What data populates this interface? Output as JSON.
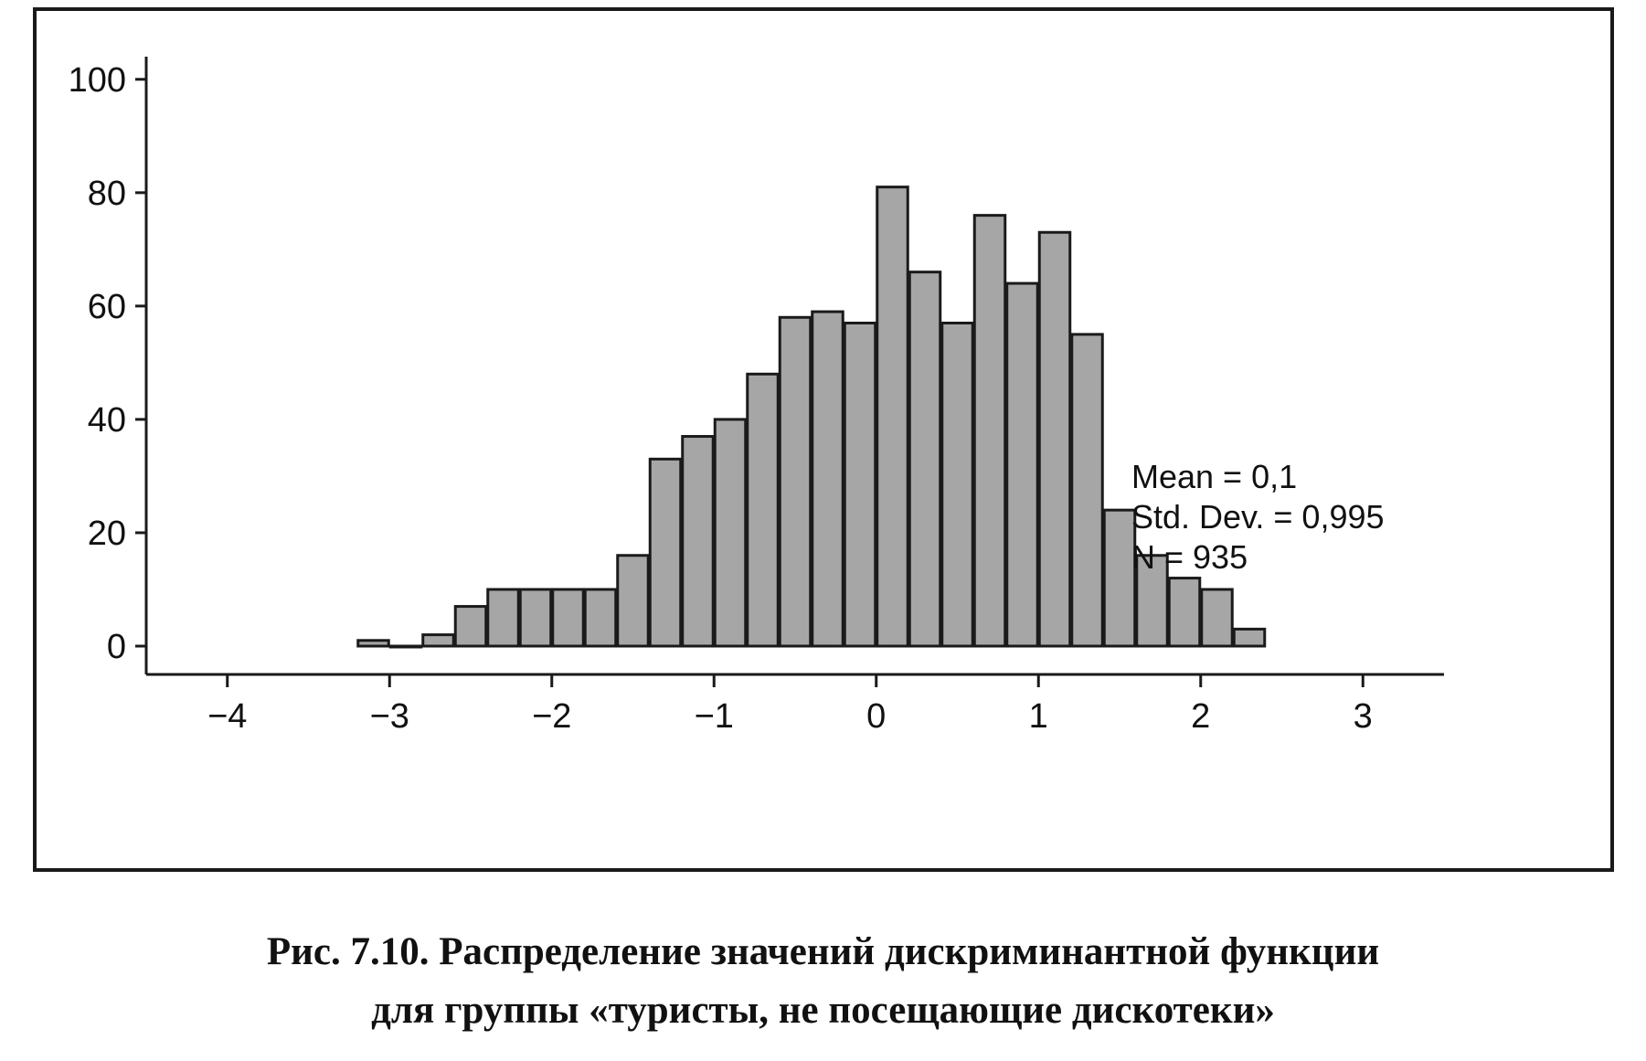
{
  "chart_data": {
    "type": "bar",
    "subtype": "histogram",
    "bin_width": 0.2,
    "bins": [
      {
        "x": -3.1,
        "value": 1
      },
      {
        "x": -2.9,
        "value": 0
      },
      {
        "x": -2.7,
        "value": 2
      },
      {
        "x": -2.5,
        "value": 7
      },
      {
        "x": -2.3,
        "value": 10
      },
      {
        "x": -2.1,
        "value": 10
      },
      {
        "x": -1.9,
        "value": 10
      },
      {
        "x": -1.7,
        "value": 10
      },
      {
        "x": -1.5,
        "value": 16
      },
      {
        "x": -1.3,
        "value": 33
      },
      {
        "x": -1.1,
        "value": 37
      },
      {
        "x": -0.9,
        "value": 40
      },
      {
        "x": -0.7,
        "value": 48
      },
      {
        "x": -0.5,
        "value": 58
      },
      {
        "x": -0.3,
        "value": 59
      },
      {
        "x": -0.1,
        "value": 57
      },
      {
        "x": 0.1,
        "value": 81
      },
      {
        "x": 0.3,
        "value": 66
      },
      {
        "x": 0.5,
        "value": 57
      },
      {
        "x": 0.7,
        "value": 76
      },
      {
        "x": 0.9,
        "value": 64
      },
      {
        "x": 1.1,
        "value": 73
      },
      {
        "x": 1.3,
        "value": 55
      },
      {
        "x": 1.5,
        "value": 24
      },
      {
        "x": 1.7,
        "value": 16
      },
      {
        "x": 1.9,
        "value": 12
      },
      {
        "x": 2.1,
        "value": 10
      },
      {
        "x": 2.3,
        "value": 3
      }
    ],
    "xlim": [
      -4.5,
      3.5
    ],
    "ylim": [
      -5,
      104
    ],
    "x_ticks": [
      -4,
      -3,
      -2,
      -1,
      0,
      1,
      2,
      3
    ],
    "x_tick_labels": [
      "−4",
      "−3",
      "−2",
      "−1",
      "0",
      "1",
      "2",
      "3"
    ],
    "y_ticks": [
      0,
      20,
      40,
      60,
      80,
      100
    ],
    "y_tick_labels": [
      "0",
      "20",
      "40",
      "60",
      "80",
      "100"
    ],
    "grid": false,
    "bar_color": "#a6a6a6",
    "bar_edge_color": "#1a1a1a",
    "stats": [
      {
        "text": "Mean = 0,1"
      },
      {
        "text": "Std. Dev. = 0,995"
      },
      {
        "text": "N = 935"
      }
    ]
  },
  "caption": {
    "line1": "Рис. 7.10. Распределение значений дискриминантной функции",
    "line2": "для группы «туристы, не посещающие дискотеки»"
  }
}
